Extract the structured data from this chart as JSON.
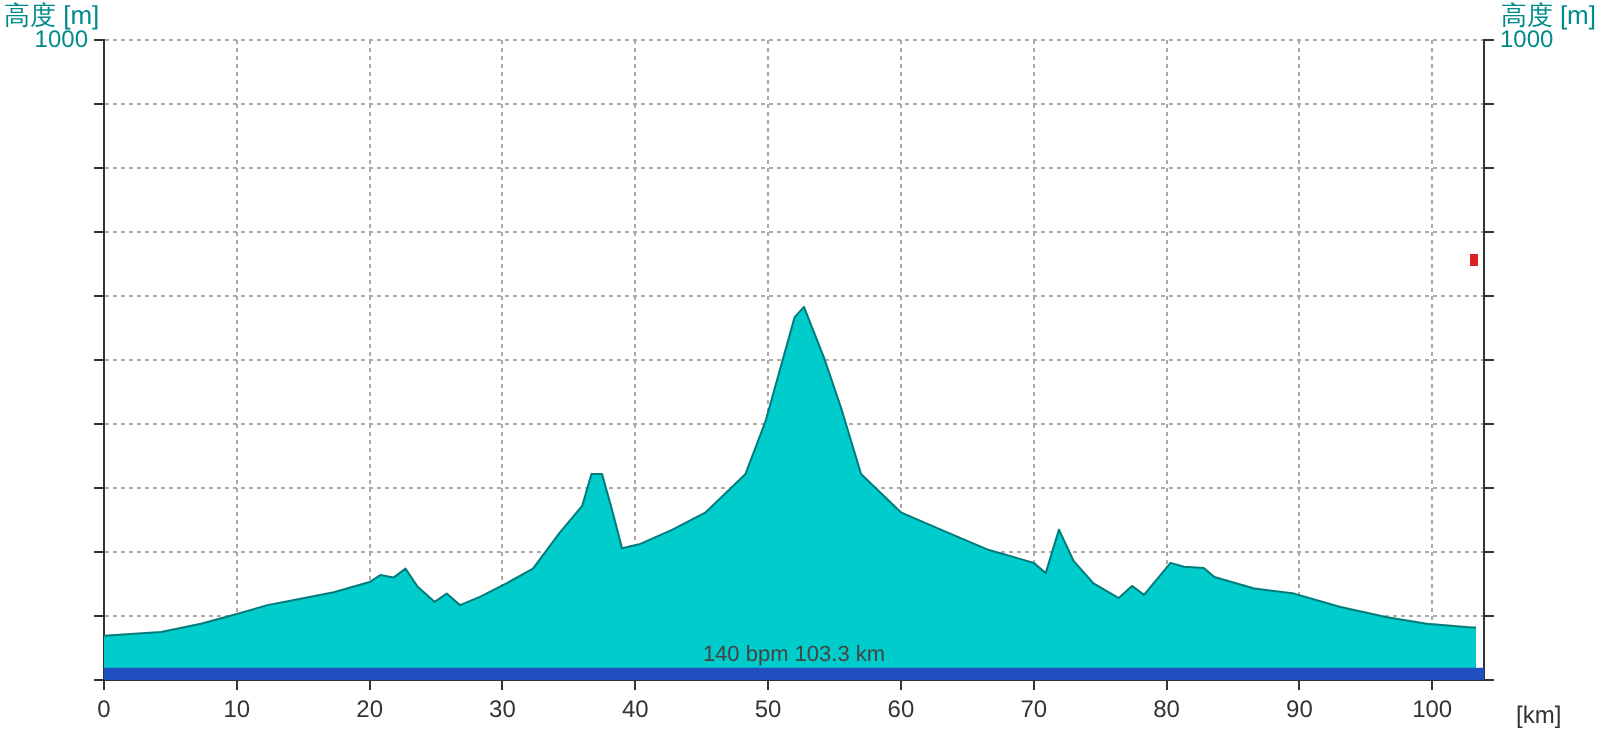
{
  "chart_data": {
    "type": "area",
    "xlabel": "[km]",
    "ylabel": "高度 [m]",
    "y2label": "高度 [m]",
    "x": [
      0,
      4.3,
      7.3,
      10,
      12.3,
      14.8,
      17.3,
      20,
      20.8,
      21.8,
      22.7,
      23.6,
      24.9,
      25.8,
      26.8,
      28.3,
      30.3,
      32.3,
      34.3,
      36,
      36.7,
      37.5,
      38.3,
      39,
      40.3,
      42.8,
      45.3,
      48.3,
      49.8,
      52,
      52.7,
      54.2,
      55.5,
      57,
      60,
      63,
      66.5,
      70,
      70.9,
      71.9,
      73,
      74.5,
      76.4,
      77.4,
      78.3,
      80.3,
      81.3,
      82.8,
      83.6,
      86.6,
      89.6,
      93.1,
      96.6,
      99.6,
      103,
      103.3
    ],
    "series": [
      {
        "color": "#00cccc",
        "values": [
          69,
          75,
          88,
          103,
          117,
          127,
          137,
          153,
          164,
          160,
          174,
          146,
          122,
          135,
          117,
          130,
          151,
          174,
          230,
          272,
          322,
          322,
          262,
          206,
          212,
          235,
          262,
          322,
          404,
          567,
          583,
          504,
          425,
          322,
          262,
          235,
          204,
          183,
          167,
          235,
          186,
          151,
          128,
          147,
          133,
          183,
          177,
          175,
          161,
          143,
          135,
          114,
          98,
          88,
          82,
          82
        ]
      }
    ],
    "xlim": [
      0,
      103.9
    ],
    "xticks": [
      0,
      10,
      20,
      30,
      40,
      50,
      60,
      70,
      80,
      90,
      100
    ],
    "ylim": [
      0,
      1000
    ],
    "yticks": [
      {
        "value": 0,
        "label": null
      },
      {
        "value": 100,
        "label": null
      },
      {
        "value": 200,
        "label": null
      },
      {
        "value": 300,
        "label": null
      },
      {
        "value": 400,
        "label": null
      },
      {
        "value": 500,
        "label": null
      },
      {
        "value": 600,
        "label": null
      },
      {
        "value": 700,
        "label": null
      },
      {
        "value": 800,
        "label": null
      },
      {
        "value": 900,
        "label": null
      },
      1000
    ],
    "annotations": [
      "1000"
    ],
    "bands": [
      {
        "axis": "y",
        "from": 0,
        "to": 19,
        "label": "140 bpm 103.3 km",
        "color": "#2050c0"
      }
    ],
    "grid": true,
    "legend": false
  }
}
